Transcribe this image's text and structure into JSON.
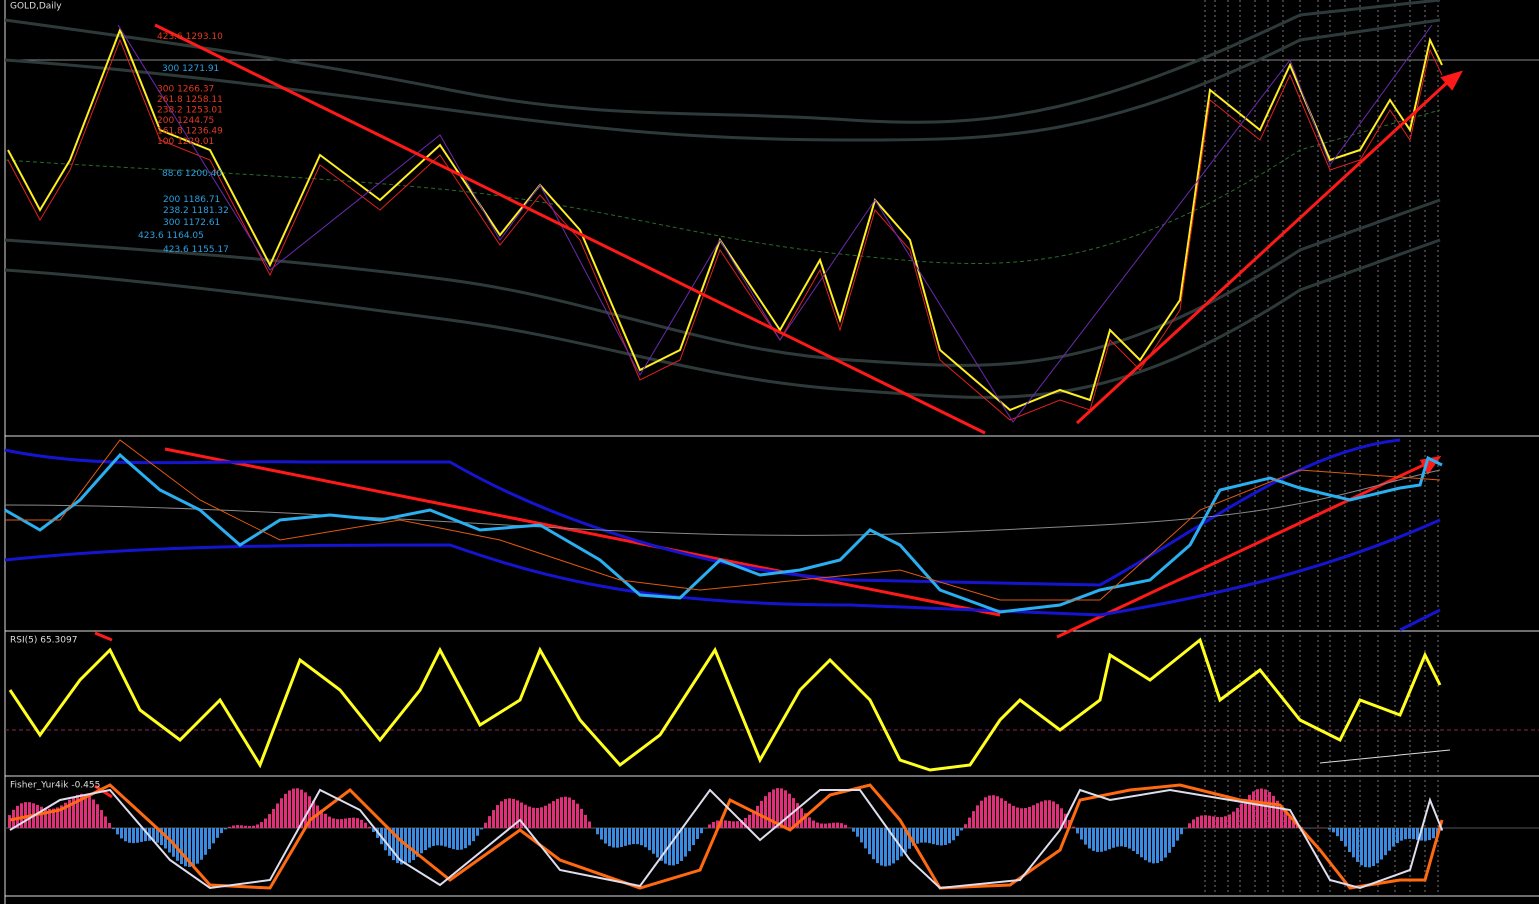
{
  "header": {
    "symbol": "GOLD,Daily"
  },
  "fib_upper": [
    {
      "level": "423.6",
      "price": "1293.10"
    },
    {
      "level": "300",
      "price": "1266.37"
    },
    {
      "level": "261.8",
      "price": "1258.11"
    },
    {
      "level": "238.2",
      "price": "1253.01"
    },
    {
      "level": "200",
      "price": "1244.75"
    },
    {
      "level": "161.8",
      "price": "1236.49"
    },
    {
      "level": "100",
      "price": "1229.01"
    }
  ],
  "fib_lower": [
    {
      "level": "300",
      "price": "1271.91"
    },
    {
      "level": "88.6",
      "price": "1200.40"
    },
    {
      "level": "200",
      "price": "1186.71"
    },
    {
      "level": "238.2",
      "price": "1181.32"
    },
    {
      "level": "300",
      "price": "1172.61"
    },
    {
      "level": "423.6",
      "price": "1164.05"
    },
    {
      "level": "423.6",
      "price": "1155.17"
    }
  ],
  "rsi": {
    "label": "RSI(5) 65.3097"
  },
  "fisher": {
    "label": "Fisher_Yur4ik -0.455"
  }
}
